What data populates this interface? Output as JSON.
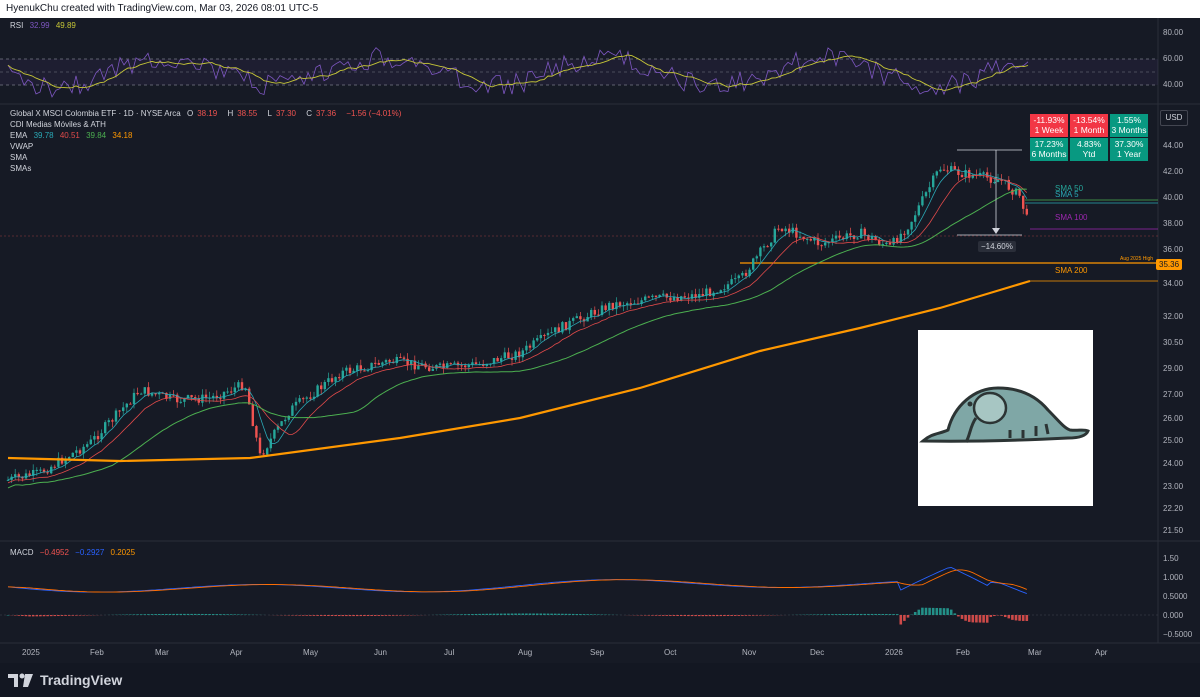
{
  "header": {
    "caption": "HyenukChu created with TradingView.com, Mar 03, 2026 08:01 UTC-5"
  },
  "rsi_panel": {
    "label": "RSI",
    "value1": "32.99",
    "value2": "49.89",
    "levels": [
      "80.00",
      "60.00",
      "40.00"
    ]
  },
  "price_panel": {
    "title": "Global X MSCI Colombia ETF · 1D · NYSE Arca",
    "ohlc": [
      {
        "k": "O",
        "v": "38.19"
      },
      {
        "k": "H",
        "v": "38.55"
      },
      {
        "k": "L",
        "v": "37.30"
      },
      {
        "k": "C",
        "v": "37.36"
      }
    ],
    "change": "−1.56 (−4.01%)",
    "indicators": [
      {
        "name": "CDI Medias Móviles & ATH",
        "values": []
      },
      {
        "name": "EMA",
        "values": [
          "39.78",
          "40.51",
          "39.84",
          "34.18"
        ]
      },
      {
        "name": "VWAP",
        "values": []
      },
      {
        "name": "SMA",
        "values": []
      },
      {
        "name": "SMAs",
        "values": []
      }
    ],
    "currency": "USD",
    "price_ticks": [
      "44.00",
      "42.00",
      "40.00",
      "38.00",
      "36.00",
      "34.00",
      "32.00",
      "30.50",
      "29.00",
      "27.00",
      "26.00",
      "25.00",
      "24.00",
      "23.00",
      "22.20",
      "21.50"
    ],
    "line_labels": {
      "sma50": "SMA 50",
      "sma5": "SMA 5",
      "sma100": "SMA 100",
      "sma200": "SMA 200",
      "aug_high": "Aug 2025 High",
      "aug_high_value": "35.36"
    },
    "drawdown": "−14.60%"
  },
  "performance": [
    {
      "value": "-11.93%",
      "period": "1 Week",
      "color": "red"
    },
    {
      "value": "-13.54%",
      "period": "1 Month",
      "color": "red"
    },
    {
      "value": "1.55%",
      "period": "3 Months",
      "color": "green"
    },
    {
      "value": "17.23%",
      "period": "6 Months",
      "color": "green"
    },
    {
      "value": "4.83%",
      "period": "Ytd",
      "color": "green"
    },
    {
      "value": "37.30%",
      "period": "1 Year",
      "color": "green"
    }
  ],
  "macd_panel": {
    "label": "MACD",
    "values": [
      "−0.4952",
      "−0.2927",
      "0.2025"
    ],
    "ticks": [
      "1.50",
      "1.000",
      "0.5000",
      "0.000",
      "−0.5000"
    ]
  },
  "time_axis": [
    "2025",
    "Feb",
    "Mar",
    "Apr",
    "May",
    "Jun",
    "Jul",
    "Aug",
    "Sep",
    "Oct",
    "Nov",
    "Dec",
    "2026",
    "Feb",
    "Mar",
    "Apr"
  ],
  "footer": {
    "brand": "TradingView"
  },
  "colors": {
    "bg": "#161a25",
    "up": "#26a69a",
    "down": "#ef5350",
    "rsi": "#7e57c2",
    "rsi_ma": "#c6c637",
    "ema_fast": "#2aa8b5",
    "ema_mid": "#e04a4a",
    "ema_slow": "#4caf50",
    "sma200": "#ff9800",
    "macd": "#2962ff",
    "signal": "#ff6d00"
  }
}
